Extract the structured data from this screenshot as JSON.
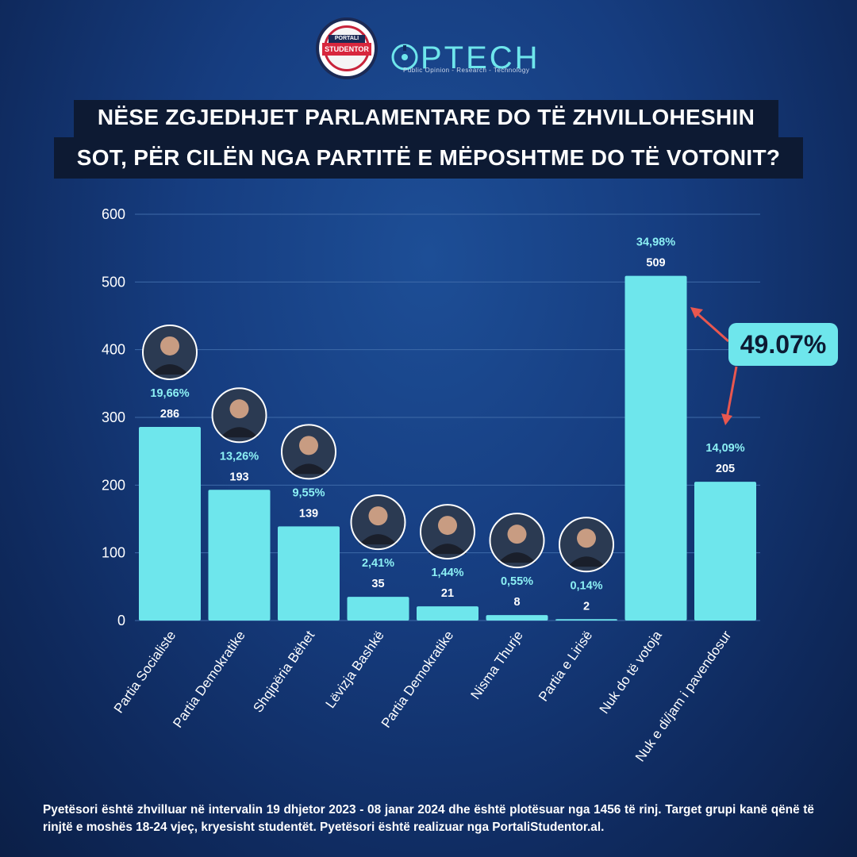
{
  "logos": {
    "portali_top": "PORTALI",
    "portali_band": "STUDENTOR",
    "ring_text": "KOMITETI STUDENTOR SHQIPTAR",
    "optech_name": "PTECH",
    "optech_tagline": "Public Opinion - Research - Technology"
  },
  "title": {
    "line1": "NËSE ZGJEDHJET PARLAMENTARE DO TË ZHVILLOHESHIN",
    "line2": "SOT, PËR CILËN NGA PARTITË E MËPOSHTME DO TË VOTONIT?"
  },
  "colors": {
    "bar": "#6ee6ec",
    "label": "#8cf0f4",
    "grid": "#3e6aa8",
    "arrow": "#e8574f",
    "callout_bg": "#6ee6ec",
    "title_bg": "#0d1a33"
  },
  "chart_data": {
    "type": "bar",
    "title": "NËSE ZGJEDHJET PARLAMENTARE DO TË ZHVILLOHESHIN SOT, PËR CILËN NGA PARTITË E MËPOSHTME DO TË VOTONIT?",
    "categories": [
      "Partia Socialiste",
      "Partia Demokratike",
      "Shqipëria Bëhet",
      "Lëvizja Bashkë",
      "Partia Demokratike",
      "Nisma Thurje",
      "Partia e Lirisë",
      "Nuk do të votoja",
      "Nuk e di/jam i pavendosur"
    ],
    "values": [
      286,
      193,
      139,
      35,
      21,
      8,
      2,
      509,
      205
    ],
    "percent_labels": [
      "19,66%",
      "13,26%",
      "9,55%",
      "2,41%",
      "1,44%",
      "0,55%",
      "0,14%",
      "34,98%",
      "14,09%"
    ],
    "value_labels": [
      "286",
      "193",
      "139",
      "35",
      "21",
      "8",
      "2",
      "509",
      "205"
    ],
    "ylim": [
      0,
      600
    ],
    "yticks": [
      0,
      100,
      200,
      300,
      400,
      500,
      600
    ],
    "grid": true,
    "portraits": [
      true,
      true,
      true,
      true,
      true,
      true,
      true,
      false,
      false
    ],
    "annotation": {
      "text": "49.07%",
      "refers_to": [
        "Nuk do të votoja",
        "Nuk e di/jam i pavendosur"
      ]
    }
  },
  "footer": "Pyetësori është zhvilluar në intervalin 19 dhjetor 2023 - 08 janar 2024 dhe është plotësuar nga 1456 të rinj. Target grupi kanë qënë të rinjtë e moshës 18-24 vjeç, kryesisht studentët. Pyetësori është realizuar nga PortaliStudentor.al."
}
